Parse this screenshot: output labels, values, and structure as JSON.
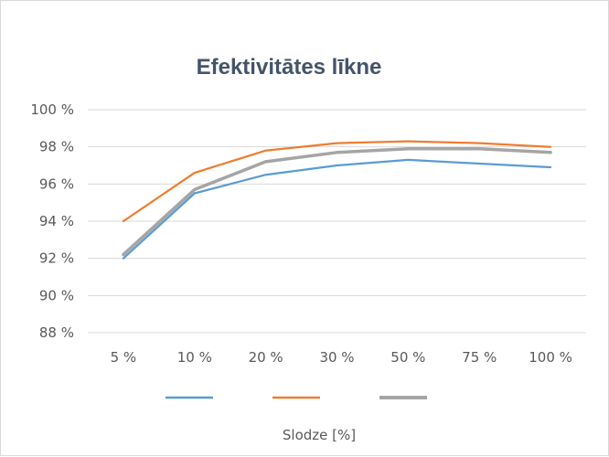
{
  "chart_data": {
    "type": "line",
    "title": "Efektivitātes līkne",
    "xlabel": "Slodze [%]",
    "ylabel": "",
    "categories": [
      "5 %",
      "10 %",
      "20 %",
      "30 %",
      "50 %",
      "75 %",
      "100 %"
    ],
    "yticks": [
      "88 %",
      "90 %",
      "92 %",
      "94 %",
      "96 %",
      "98 %",
      "100 %"
    ],
    "ylim": [
      88,
      100
    ],
    "grid": true,
    "legend_position": "bottom",
    "series": [
      {
        "color": "#5b9bd5",
        "values": [
          92.0,
          95.5,
          96.5,
          97.0,
          97.3,
          97.1,
          96.9
        ]
      },
      {
        "color": "#ed7d31",
        "values": [
          94.0,
          96.6,
          97.8,
          98.2,
          98.3,
          98.2,
          98.0
        ]
      },
      {
        "color": "#a5a5a5",
        "values": [
          92.2,
          95.7,
          97.2,
          97.7,
          97.9,
          97.9,
          97.7
        ]
      }
    ]
  }
}
